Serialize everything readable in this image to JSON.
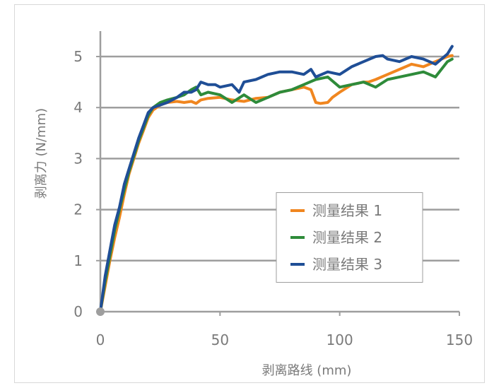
{
  "chart_data": {
    "type": "line",
    "title": "",
    "xlabel": "剥离路线 (mm)",
    "ylabel": "剥离力 (N/mm)",
    "xlim": [
      0,
      150
    ],
    "ylim": [
      0,
      5
    ],
    "xticks": [
      0,
      50,
      100,
      150
    ],
    "yticks": [
      0,
      1,
      2,
      3,
      4,
      5
    ],
    "grid": "horizontal",
    "legend_position": "lower-right",
    "colors": {
      "series1": "#f0861f",
      "series2": "#2e8b3a",
      "series3": "#1f4e96",
      "axis": "#9e9e9e",
      "grid": "#9e9e9e",
      "text": "#7a7a7a",
      "origin_marker": "#9e9e9e"
    },
    "series": [
      {
        "name": "测量结果  1",
        "x": [
          0,
          2,
          4,
          6,
          8,
          10,
          12,
          14,
          16,
          18,
          20,
          22,
          25,
          28,
          32,
          35,
          38,
          40,
          42,
          45,
          50,
          55,
          60,
          65,
          70,
          75,
          80,
          85,
          88,
          90,
          92,
          95,
          97,
          100,
          105,
          110,
          112,
          115,
          120,
          125,
          130,
          135,
          140,
          145,
          147
        ],
        "y": [
          0,
          0.5,
          1.0,
          1.45,
          1.85,
          2.3,
          2.7,
          3.0,
          3.3,
          3.55,
          3.8,
          3.95,
          4.05,
          4.1,
          4.12,
          4.1,
          4.12,
          4.08,
          4.15,
          4.18,
          4.2,
          4.15,
          4.12,
          4.18,
          4.2,
          4.3,
          4.35,
          4.4,
          4.35,
          4.1,
          4.08,
          4.1,
          4.2,
          4.3,
          4.45,
          4.5,
          4.5,
          4.55,
          4.65,
          4.75,
          4.85,
          4.8,
          4.9,
          5.0,
          5.02
        ]
      },
      {
        "name": "测量结果  2",
        "x": [
          0,
          2,
          4,
          6,
          8,
          10,
          12,
          14,
          16,
          18,
          20,
          22,
          25,
          28,
          32,
          35,
          38,
          40,
          42,
          45,
          50,
          55,
          60,
          65,
          70,
          75,
          80,
          85,
          90,
          95,
          100,
          105,
          110,
          115,
          120,
          125,
          130,
          135,
          140,
          145,
          147
        ],
        "y": [
          0,
          0.6,
          1.1,
          1.6,
          2.0,
          2.4,
          2.75,
          3.05,
          3.35,
          3.6,
          3.85,
          4.0,
          4.1,
          4.15,
          4.2,
          4.25,
          4.35,
          4.4,
          4.25,
          4.3,
          4.25,
          4.1,
          4.25,
          4.1,
          4.2,
          4.3,
          4.35,
          4.45,
          4.55,
          4.6,
          4.4,
          4.45,
          4.5,
          4.4,
          4.55,
          4.6,
          4.65,
          4.7,
          4.6,
          4.9,
          4.95
        ]
      },
      {
        "name": "测量结果  3",
        "x": [
          0,
          2,
          4,
          6,
          8,
          10,
          12,
          14,
          16,
          18,
          20,
          22,
          25,
          28,
          32,
          35,
          38,
          40,
          42,
          45,
          48,
          50,
          55,
          58,
          60,
          65,
          70,
          75,
          80,
          85,
          88,
          90,
          95,
          100,
          105,
          110,
          115,
          118,
          120,
          125,
          130,
          135,
          140,
          145,
          147
        ],
        "y": [
          0,
          0.7,
          1.2,
          1.7,
          2.05,
          2.5,
          2.8,
          3.1,
          3.4,
          3.65,
          3.9,
          4.0,
          4.05,
          4.1,
          4.2,
          4.3,
          4.3,
          4.35,
          4.5,
          4.45,
          4.45,
          4.4,
          4.45,
          4.3,
          4.5,
          4.55,
          4.65,
          4.7,
          4.7,
          4.65,
          4.75,
          4.6,
          4.7,
          4.65,
          4.8,
          4.9,
          5.0,
          5.02,
          4.95,
          4.9,
          5.0,
          4.95,
          4.85,
          5.05,
          5.2
        ]
      }
    ],
    "origin_marker": {
      "x": 0,
      "y": 0
    }
  }
}
